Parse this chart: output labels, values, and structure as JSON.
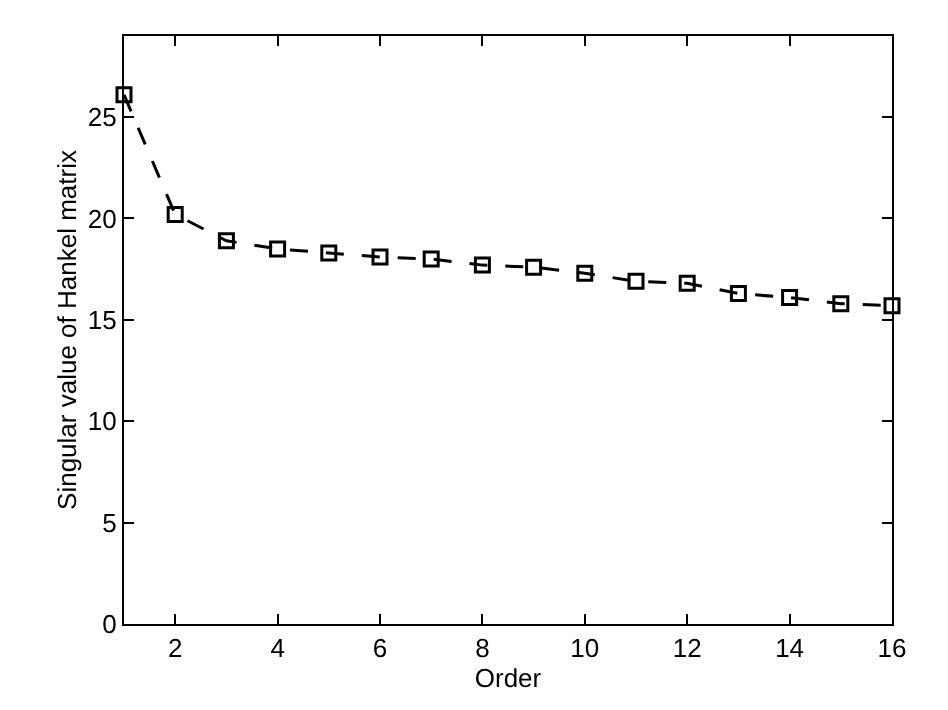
{
  "chart_data": {
    "type": "line",
    "xlabel": "Order",
    "ylabel": "Singular value of Hankel matrix",
    "x": [
      1,
      2,
      3,
      4,
      5,
      6,
      7,
      8,
      9,
      10,
      11,
      12,
      13,
      14,
      15,
      16
    ],
    "series": [
      {
        "color": "#000000",
        "values": [
          26.1,
          20.2,
          18.9,
          18.5,
          18.3,
          18.1,
          18.0,
          17.7,
          17.6,
          17.3,
          16.9,
          16.8,
          16.3,
          16.1,
          15.8,
          15.7
        ]
      }
    ],
    "xlim": [
      1,
      16
    ],
    "xticks": [
      2,
      4,
      6,
      8,
      10,
      12,
      14,
      16
    ],
    "ylim": [
      0,
      29
    ],
    "yticks": [
      0,
      5,
      10,
      15,
      20,
      25
    ],
    "marker": "square",
    "line_style": "dashed",
    "grid": false
  }
}
